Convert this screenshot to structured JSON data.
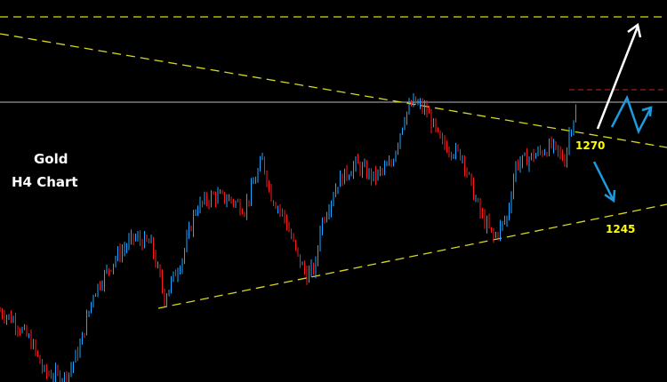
{
  "chart_data": {
    "type": "candlestick",
    "title": "Gold",
    "subtitle": "H4 Chart",
    "colors": {
      "background": "#000000",
      "up": "#1ea7ff",
      "down": "#ff1a1a",
      "trendline": "#d8d820",
      "resistance_level": "#bbbbbb",
      "target_level": "#cc2222",
      "arrow_bull": "#ffffff",
      "arrow_alt": "#1e9be0"
    },
    "price_path": {
      "bars": [
        0,
        3,
        7,
        10,
        15,
        18,
        21,
        26,
        30,
        34,
        37,
        41,
        44,
        48,
        52,
        55,
        59,
        61,
        64,
        67,
        69,
        71,
        72,
        76,
        80,
        84,
        88,
        91,
        93,
        96,
        99,
        102,
        104,
        106,
        108,
        111,
        114,
        116,
        120,
        124,
        127,
        128,
        130
      ],
      "prices": [
        1220.8,
        1218.2,
        1211.6,
        1202.4,
        1201.1,
        1210.3,
        1226.1,
        1236.6,
        1242.4,
        1240.5,
        1224.8,
        1236.6,
        1251.1,
        1255.0,
        1253.7,
        1251.1,
        1265.5,
        1255.0,
        1248.4,
        1236.6,
        1231.3,
        1234.0,
        1245.8,
        1259.0,
        1264.2,
        1260.3,
        1264.2,
        1278.7,
        1282.6,
        1280.0,
        1270.8,
        1268.2,
        1266.8,
        1257.6,
        1249.7,
        1242.4,
        1248.4,
        1264.2,
        1266.8,
        1269.5,
        1265.5,
        1273.4,
        1282.6
      ]
    },
    "annotations": [
      {
        "text": "1270",
        "level": 1270
      },
      {
        "text": "1245",
        "level": 1245
      }
    ],
    "grid": false,
    "axes_visible": false
  }
}
